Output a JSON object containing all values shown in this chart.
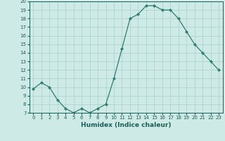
{
  "x": [
    0,
    1,
    2,
    3,
    4,
    5,
    6,
    7,
    8,
    9,
    10,
    11,
    12,
    13,
    14,
    15,
    16,
    17,
    18,
    19,
    20,
    21,
    22,
    23
  ],
  "y": [
    9.8,
    10.5,
    10.0,
    8.5,
    7.5,
    7.0,
    7.5,
    7.0,
    7.5,
    8.0,
    11.0,
    14.5,
    18.0,
    18.5,
    19.5,
    19.5,
    19.0,
    19.0,
    18.0,
    16.5,
    15.0,
    14.0,
    13.0,
    12.0
  ],
  "ylim": [
    7,
    20
  ],
  "yticks": [
    7,
    8,
    9,
    10,
    11,
    12,
    13,
    14,
    15,
    16,
    17,
    18,
    19,
    20
  ],
  "xticks": [
    0,
    1,
    2,
    3,
    4,
    5,
    6,
    7,
    8,
    9,
    10,
    11,
    12,
    13,
    14,
    15,
    16,
    17,
    18,
    19,
    20,
    21,
    22,
    23
  ],
  "xlabel": "Humidex (Indice chaleur)",
  "line_color": "#2e7d6e",
  "marker_color": "#2e7d6e",
  "bg_color": "#ceeae7",
  "grid_color": "#aacfcb",
  "tick_label_color": "#1a5f56",
  "axis_color": "#1a5f56"
}
